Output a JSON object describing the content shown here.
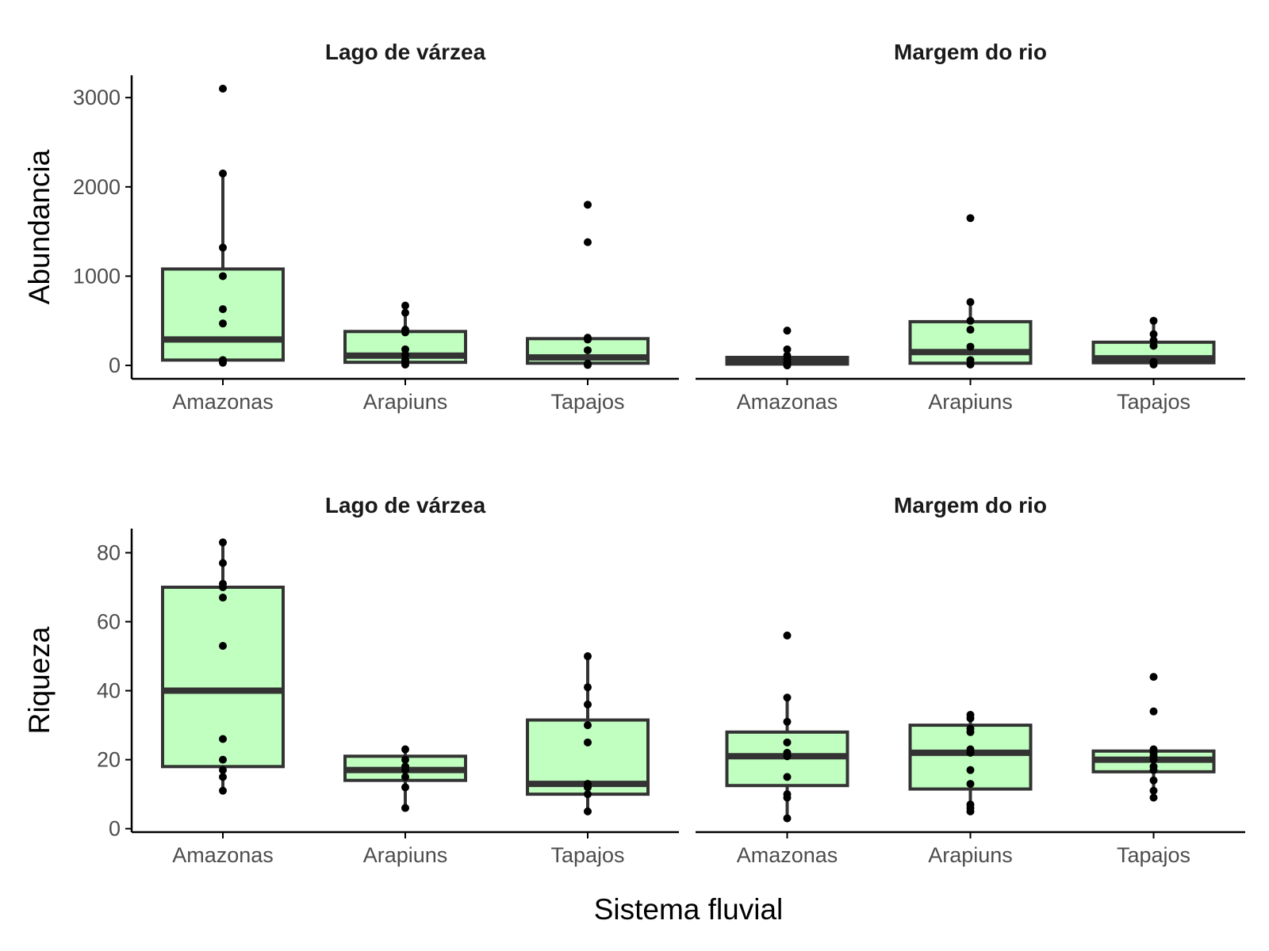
{
  "colors": {
    "box_fill": "#c0ffc0",
    "box_line": "#333333",
    "point": "#000000",
    "axis": "#000000",
    "tick_text": "#4d4d4d"
  },
  "chart_data": [
    {
      "type": "box",
      "ylabel": "Abundancia",
      "xlabel": "",
      "ylim": [
        -150,
        3250
      ],
      "yticks": [
        0,
        1000,
        2000,
        3000
      ],
      "categories": [
        "Amazonas",
        "Arapiuns",
        "Tapajos"
      ],
      "facets": [
        {
          "title": "Lago de várzea",
          "boxes": [
            {
              "q1": 60,
              "median": 290,
              "q3": 1080,
              "whisker_low": 30,
              "whisker_high": 2150,
              "outliers": [
                3100
              ]
            },
            {
              "q1": 35,
              "median": 110,
              "q3": 380,
              "whisker_low": 10,
              "whisker_high": 670,
              "outliers": []
            },
            {
              "q1": 25,
              "median": 90,
              "q3": 300,
              "whisker_low": 5,
              "whisker_high": 310,
              "outliers": [
                1380,
                1800
              ]
            }
          ],
          "points": [
            [
              30,
              60,
              470,
              630,
              1000,
              1320,
              2150,
              3100
            ],
            [
              10,
              30,
              60,
              120,
              180,
              370,
              400,
              590,
              670
            ],
            [
              5,
              20,
              170,
              290,
              310,
              1380,
              1800
            ]
          ]
        },
        {
          "title": "Margem do rio",
          "boxes": [
            {
              "q1": 15,
              "median": 55,
              "q3": 90,
              "whisker_low": 0,
              "whisker_high": 140,
              "outliers": [
                180,
                390
              ]
            },
            {
              "q1": 25,
              "median": 150,
              "q3": 490,
              "whisker_low": 10,
              "whisker_high": 710,
              "outliers": [
                1650
              ]
            },
            {
              "q1": 30,
              "median": 80,
              "q3": 260,
              "whisker_low": 10,
              "whisker_high": 500,
              "outliers": []
            }
          ],
          "points": [
            [
              0,
              10,
              30,
              70,
              110,
              180,
              390
            ],
            [
              10,
              60,
              210,
              400,
              500,
              710,
              1650
            ],
            [
              10,
              40,
              220,
              280,
              350,
              500
            ]
          ]
        }
      ]
    },
    {
      "type": "box",
      "ylabel": "Riqueza",
      "xlabel": "Sistema fluvial",
      "ylim": [
        -1,
        87
      ],
      "yticks": [
        0,
        20,
        40,
        60,
        80
      ],
      "categories": [
        "Amazonas",
        "Arapiuns",
        "Tapajos"
      ],
      "facets": [
        {
          "title": "Lago de várzea",
          "boxes": [
            {
              "q1": 18,
              "median": 40,
              "q3": 70,
              "whisker_low": 11,
              "whisker_high": 83,
              "outliers": []
            },
            {
              "q1": 14,
              "median": 17,
              "q3": 21,
              "whisker_low": 6,
              "whisker_high": 23,
              "outliers": []
            },
            {
              "q1": 10,
              "median": 13,
              "q3": 31.5,
              "whisker_low": 5,
              "whisker_high": 50,
              "outliers": []
            }
          ],
          "points": [
            [
              11,
              15,
              17,
              20,
              26,
              53,
              67,
              70,
              71,
              77,
              83
            ],
            [
              6,
              12,
              15,
              17,
              18,
              20,
              23
            ],
            [
              5,
              10,
              12,
              13,
              25,
              30,
              36,
              41,
              50
            ]
          ]
        },
        {
          "title": "Margem do rio",
          "boxes": [
            {
              "q1": 12.5,
              "median": 21,
              "q3": 28,
              "whisker_low": 3,
              "whisker_high": 38,
              "outliers": [
                56
              ]
            },
            {
              "q1": 11.5,
              "median": 22,
              "q3": 30,
              "whisker_low": 5,
              "whisker_high": 33,
              "outliers": []
            },
            {
              "q1": 16.5,
              "median": 20,
              "q3": 22.5,
              "whisker_low": 9,
              "whisker_high": 23,
              "outliers": [
                34,
                44
              ]
            }
          ],
          "points": [
            [
              3,
              9,
              10,
              15,
              21,
              22,
              25,
              31,
              38,
              56
            ],
            [
              5,
              6,
              7,
              13,
              17,
              22,
              23,
              28,
              29,
              32,
              33
            ],
            [
              9,
              11,
              14,
              17,
              18,
              20,
              21,
              22,
              23,
              34,
              44
            ]
          ]
        }
      ]
    }
  ]
}
